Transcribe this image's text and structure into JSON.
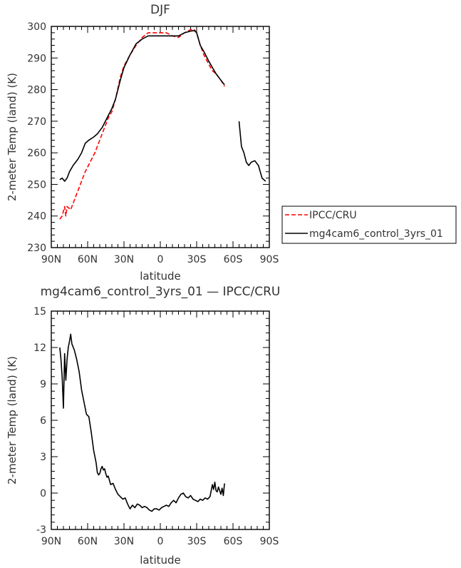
{
  "chart_data": [
    {
      "type": "line",
      "title": "DJF",
      "xlabel": "latitude",
      "ylabel": "2-meter Temp (land) (K)",
      "xlim": [
        90,
        -90
      ],
      "ylim": [
        230,
        300
      ],
      "xticks": [
        90,
        60,
        30,
        0,
        -30,
        -60,
        -90
      ],
      "xtick_labels": [
        "90N",
        "60N",
        "30N",
        "0",
        "30S",
        "60S",
        "90S"
      ],
      "yticks": [
        230,
        240,
        250,
        260,
        270,
        280,
        290,
        300
      ],
      "ytick_labels": [
        "230",
        "240",
        "250",
        "260",
        "270",
        "280",
        "290",
        "300"
      ],
      "legend": "right",
      "series": [
        {
          "name": "IPCC/CRU",
          "color": "#ff0000",
          "dash": "dashed",
          "points": [
            [
              83,
              239
            ],
            [
              81,
              240
            ],
            [
              79,
              243
            ],
            [
              78,
              240
            ],
            [
              77,
              243
            ],
            [
              74,
              242
            ],
            [
              72,
              244
            ],
            [
              69,
              247
            ],
            [
              66,
              250
            ],
            [
              62,
              254
            ],
            [
              58,
              257
            ],
            [
              54,
              260
            ],
            [
              50,
              264
            ],
            [
              46,
              268
            ],
            [
              43,
              271
            ],
            [
              40,
              273
            ],
            [
              37,
              277
            ],
            [
              33,
              284
            ],
            [
              30,
              287.5
            ],
            [
              25,
              291
            ],
            [
              20,
              294
            ],
            [
              15,
              296.5
            ],
            [
              10,
              298
            ],
            [
              5,
              298
            ],
            [
              0,
              298
            ],
            [
              -5,
              298
            ],
            [
              -10,
              297
            ],
            [
              -15,
              296.5
            ],
            [
              -20,
              298
            ],
            [
              -25,
              299
            ],
            [
              -28,
              299
            ],
            [
              -30,
              298
            ],
            [
              -33,
              294
            ],
            [
              -36,
              291
            ],
            [
              -40,
              288
            ],
            [
              -43,
              286
            ],
            [
              -46,
              285
            ],
            [
              -50,
              283
            ],
            [
              -53,
              281
            ]
          ]
        },
        {
          "name": "mg4cam6_control_3yrs_01",
          "color": "#000000",
          "dash": "solid",
          "segments": [
            [
              [
                83,
                251.5
              ],
              [
                81,
                252
              ],
              [
                79,
                251
              ],
              [
                77,
                252
              ],
              [
                75,
                254
              ],
              [
                72,
                256
              ],
              [
                68,
                258
              ],
              [
                65,
                260
              ],
              [
                62,
                263
              ],
              [
                59,
                264
              ],
              [
                55,
                265
              ],
              [
                52,
                266
              ],
              [
                48,
                268
              ],
              [
                44,
                271
              ],
              [
                40,
                274
              ],
              [
                37,
                277
              ],
              [
                33,
                283
              ],
              [
                30,
                287
              ],
              [
                25,
                291
              ],
              [
                20,
                294.5
              ],
              [
                15,
                296
              ],
              [
                10,
                297
              ],
              [
                5,
                297
              ],
              [
                0,
                297
              ],
              [
                -5,
                297
              ],
              [
                -10,
                297
              ],
              [
                -15,
                297
              ],
              [
                -20,
                298
              ],
              [
                -25,
                298.5
              ],
              [
                -28,
                298.7
              ],
              [
                -30,
                298
              ],
              [
                -33,
                294
              ],
              [
                -36,
                292
              ],
              [
                -40,
                289
              ],
              [
                -43,
                287
              ],
              [
                -46,
                285
              ],
              [
                -50,
                283
              ],
              [
                -53,
                281.5
              ]
            ],
            [
              [
                -65,
                270
              ],
              [
                -67,
                262
              ],
              [
                -69,
                260
              ],
              [
                -71,
                257
              ],
              [
                -73,
                256
              ],
              [
                -75,
                257
              ],
              [
                -78,
                257.5
              ],
              [
                -81,
                256
              ],
              [
                -84,
                252
              ],
              [
                -87,
                251
              ]
            ]
          ]
        }
      ]
    },
    {
      "type": "line",
      "title": "mg4cam6_control_3yrs_01 — IPCC/CRU",
      "xlabel": "latitude",
      "ylabel": "2-meter Temp (land) (K)",
      "xlim": [
        90,
        -90
      ],
      "ylim": [
        -3,
        15
      ],
      "xticks": [
        90,
        60,
        30,
        0,
        -30,
        -60,
        -90
      ],
      "xtick_labels": [
        "90N",
        "60N",
        "30N",
        "0",
        "30S",
        "60S",
        "90S"
      ],
      "yticks": [
        -3,
        0,
        3,
        6,
        9,
        12,
        15
      ],
      "ytick_labels": [
        "-3",
        "0",
        "3",
        "6",
        "9",
        "12",
        "15"
      ],
      "series": [
        {
          "color": "#000000",
          "dash": "solid",
          "points": [
            [
              83,
              12
            ],
            [
              82,
              11
            ],
            [
              81,
              9.5
            ],
            [
              80,
              7
            ],
            [
              79,
              11.5
            ],
            [
              78,
              9.3
            ],
            [
              77,
              11
            ],
            [
              76,
              12
            ],
            [
              75,
              12.5
            ],
            [
              74,
              13.1
            ],
            [
              73,
              12.3
            ],
            [
              71,
              11.8
            ],
            [
              69,
              11
            ],
            [
              67,
              10
            ],
            [
              65,
              8.5
            ],
            [
              63,
              7.5
            ],
            [
              61,
              6.5
            ],
            [
              59,
              6.3
            ],
            [
              57,
              5
            ],
            [
              55,
              3.5
            ],
            [
              53,
              2.5
            ],
            [
              52,
              1.7
            ],
            [
              51,
              1.5
            ],
            [
              50,
              1.6
            ],
            [
              49,
              2
            ],
            [
              48,
              2.2
            ],
            [
              47,
              1.9
            ],
            [
              46,
              2
            ],
            [
              45,
              1.6
            ],
            [
              44,
              1.3
            ],
            [
              43,
              1.4
            ],
            [
              41,
              0.7
            ],
            [
              39,
              0.8
            ],
            [
              37,
              0.3
            ],
            [
              35,
              -0.1
            ],
            [
              33,
              -0.3
            ],
            [
              31,
              -0.5
            ],
            [
              29,
              -0.4
            ],
            [
              27,
              -0.9
            ],
            [
              25,
              -1.3
            ],
            [
              23,
              -1
            ],
            [
              21,
              -1.2
            ],
            [
              19,
              -0.9
            ],
            [
              17,
              -1
            ],
            [
              15,
              -1.2
            ],
            [
              13,
              -1.1
            ],
            [
              11,
              -1.2
            ],
            [
              9,
              -1.4
            ],
            [
              7,
              -1.5
            ],
            [
              5,
              -1.3
            ],
            [
              3,
              -1.3
            ],
            [
              1,
              -1.4
            ],
            [
              -1,
              -1.2
            ],
            [
              -3,
              -1.1
            ],
            [
              -5,
              -1
            ],
            [
              -7,
              -1.1
            ],
            [
              -9,
              -0.8
            ],
            [
              -11,
              -0.6
            ],
            [
              -13,
              -0.8
            ],
            [
              -15,
              -0.4
            ],
            [
              -17,
              -0.1
            ],
            [
              -19,
              0
            ],
            [
              -21,
              -0.3
            ],
            [
              -23,
              -0.4
            ],
            [
              -25,
              -0.2
            ],
            [
              -27,
              -0.5
            ],
            [
              -29,
              -0.6
            ],
            [
              -31,
              -0.7
            ],
            [
              -33,
              -0.5
            ],
            [
              -35,
              -0.6
            ],
            [
              -37,
              -0.4
            ],
            [
              -39,
              -0.5
            ],
            [
              -41,
              -0.3
            ],
            [
              -43,
              0.7
            ],
            [
              -44,
              0.3
            ],
            [
              -45,
              0.9
            ],
            [
              -46,
              0.2
            ],
            [
              -47,
              0.1
            ],
            [
              -48,
              0.5
            ],
            [
              -50,
              -0.1
            ],
            [
              -51,
              0.4
            ],
            [
              -52,
              -0.2
            ],
            [
              -53,
              0.8
            ]
          ]
        }
      ]
    }
  ]
}
